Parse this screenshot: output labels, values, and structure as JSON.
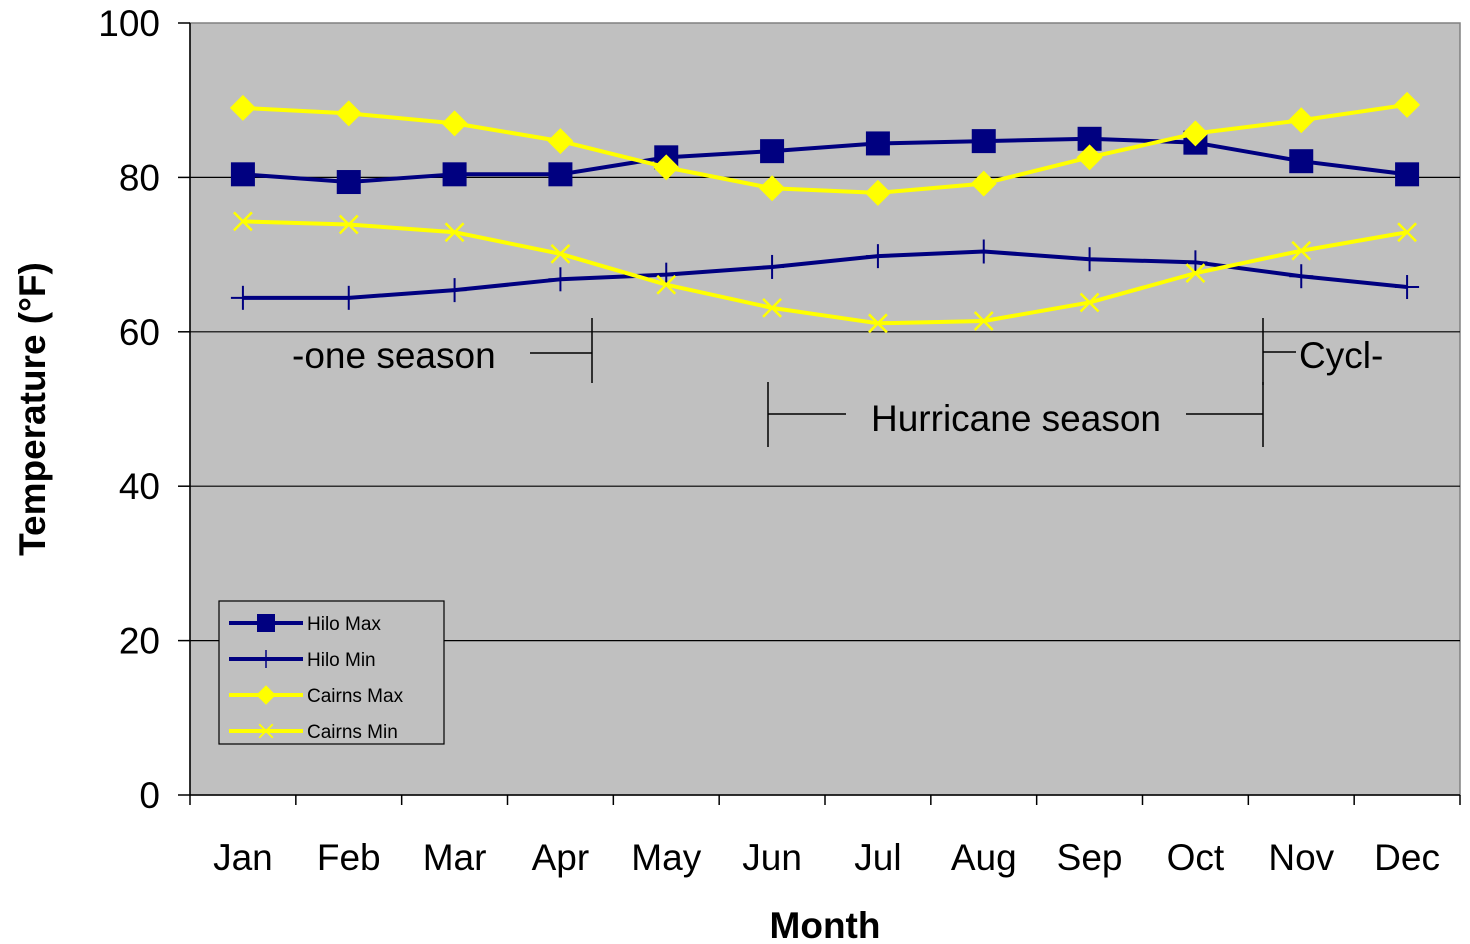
{
  "chart_data": {
    "type": "line",
    "title": "",
    "xlabel": "Month",
    "ylabel": "Temperature (°F)",
    "categories": [
      "Jan",
      "Feb",
      "Mar",
      "Apr",
      "May",
      "Jun",
      "Jul",
      "Aug",
      "Sep",
      "Oct",
      "Nov",
      "Dec"
    ],
    "ylim": [
      0,
      100
    ],
    "yticks": [
      0,
      20,
      40,
      60,
      80,
      100
    ],
    "grid": true,
    "legend_position": "bottom-left",
    "plot_background": "#C0C0C0",
    "series": [
      {
        "name": "Hilo Max",
        "marker": "square",
        "color": "#000080",
        "values": [
          80.4,
          79.4,
          80.4,
          80.4,
          82.6,
          83.4,
          84.4,
          84.7,
          85.0,
          84.5,
          82.1,
          80.4
        ]
      },
      {
        "name": "Hilo Min",
        "marker": "plus",
        "color": "#000080",
        "values": [
          64.4,
          64.4,
          65.4,
          66.8,
          67.4,
          68.4,
          69.8,
          70.4,
          69.4,
          69.0,
          67.2,
          65.8
        ]
      },
      {
        "name": "Cairns Max",
        "marker": "diamond",
        "color": "#FFFF00",
        "values": [
          89.0,
          88.3,
          87.0,
          84.7,
          81.3,
          78.6,
          78.0,
          79.2,
          82.6,
          85.7,
          87.4,
          89.4
        ]
      },
      {
        "name": "Cairns Min",
        "marker": "x",
        "color": "#FFFF00",
        "values": [
          74.3,
          73.9,
          72.9,
          70.1,
          66.1,
          63.1,
          61.1,
          61.4,
          63.8,
          67.6,
          70.5,
          72.9
        ]
      }
    ],
    "annotations": [
      {
        "text": "-one season",
        "from_month": "Jan",
        "to_month": "Apr"
      },
      {
        "text": "Hurricane season",
        "from_month": "Jun",
        "to_month": "Oct"
      },
      {
        "text": "Cycl-",
        "from_month": "Nov",
        "to_month": "Dec"
      }
    ]
  }
}
